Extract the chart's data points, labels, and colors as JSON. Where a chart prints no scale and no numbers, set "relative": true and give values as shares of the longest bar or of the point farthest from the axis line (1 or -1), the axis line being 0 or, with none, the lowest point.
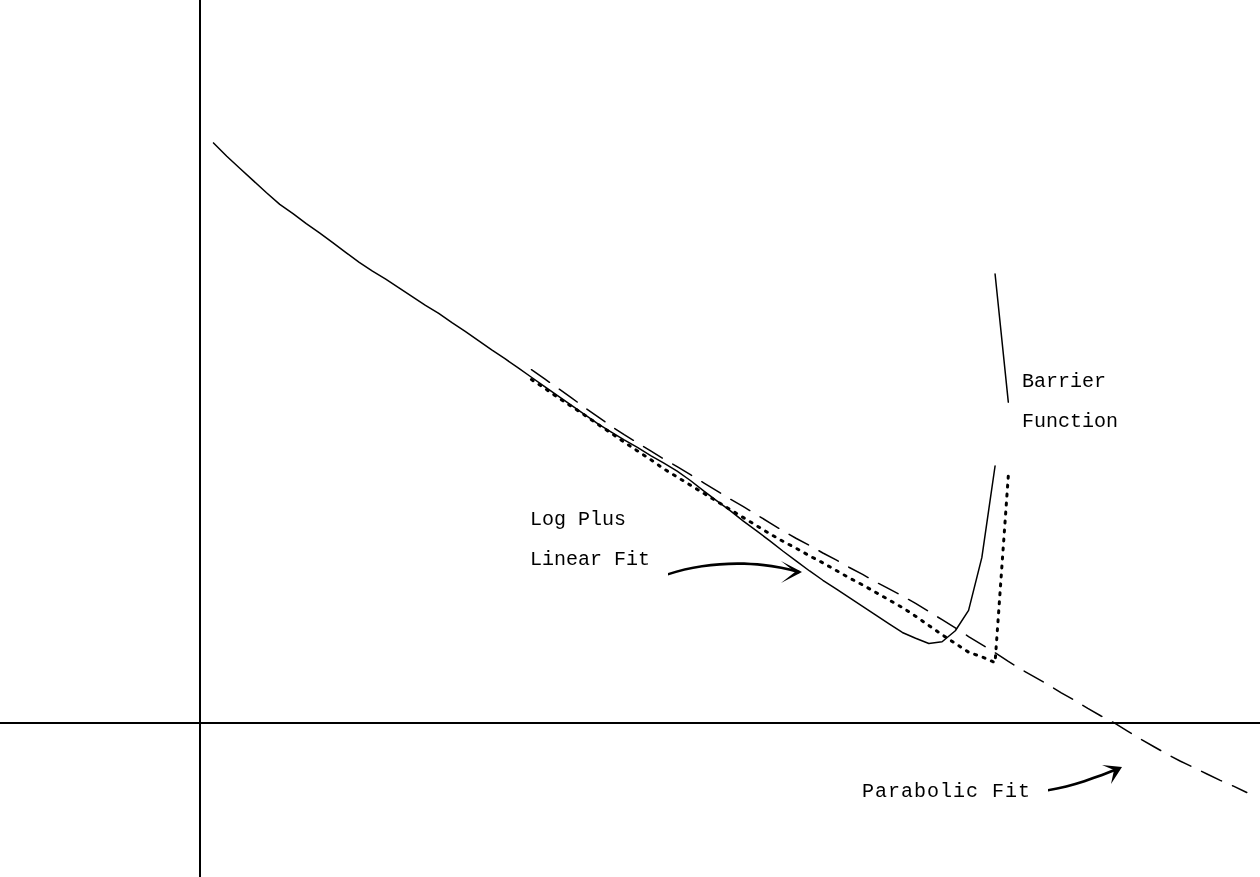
{
  "chart_data": {
    "type": "line",
    "relative": true,
    "marker": "none",
    "categories": [
      null,
      null,
      null,
      null,
      null,
      null,
      null,
      null,
      null,
      null,
      null,
      null,
      null,
      null,
      null,
      null,
      null,
      null,
      null,
      null,
      null,
      null,
      null,
      null,
      null,
      null,
      null,
      null,
      null,
      null,
      null,
      null,
      null,
      null,
      null,
      null,
      null,
      null,
      null,
      null,
      null,
      null,
      null,
      null,
      null,
      null,
      null,
      null,
      null,
      null,
      null,
      null,
      null,
      null,
      null,
      null,
      null,
      null,
      null,
      null,
      null,
      null,
      null,
      null,
      null,
      null,
      null,
      null,
      null,
      null,
      null,
      null,
      null,
      null,
      null,
      null,
      null,
      null,
      null,
      null,
      null
    ],
    "series": [
      {
        "name": "Barrier Function",
        "color": "#000000",
        "line_style": "solid",
        "values": [
          null,
          1.0,
          0.977,
          0.956,
          0.935,
          0.914,
          0.894,
          0.878,
          0.861,
          0.845,
          0.828,
          0.811,
          0.794,
          0.779,
          0.765,
          0.75,
          0.735,
          0.72,
          0.706,
          0.69,
          0.675,
          0.659,
          0.643,
          0.628,
          0.612,
          0.596,
          0.58,
          0.564,
          0.548,
          0.532,
          0.516,
          0.502,
          0.488,
          0.475,
          0.461,
          0.448,
          0.434,
          0.418,
          0.4,
          0.383,
          0.366,
          0.348,
          0.331,
          0.314,
          0.296,
          0.279,
          0.262,
          0.246,
          0.231,
          0.216,
          0.201,
          0.186,
          0.171,
          0.156,
          0.146,
          0.137,
          0.14,
          0.159,
          0.194,
          0.285,
          0.443,
          null,
          null,
          null,
          null,
          null,
          null,
          null,
          null,
          null,
          null,
          null,
          null,
          null,
          null,
          null,
          null,
          null,
          null,
          null,
          null
        ]
      },
      {
        "name": "Log Plus Linear Fit",
        "color": "#000000",
        "line_style": "dotted",
        "values": [
          null,
          null,
          null,
          null,
          null,
          null,
          null,
          null,
          null,
          null,
          null,
          null,
          null,
          null,
          null,
          null,
          null,
          null,
          null,
          null,
          null,
          null,
          null,
          null,
          null,
          0.592,
          0.577,
          0.561,
          0.546,
          0.531,
          0.515,
          0.5,
          0.484,
          0.469,
          0.454,
          0.438,
          0.424,
          0.41,
          0.396,
          0.382,
          0.368,
          0.354,
          0.34,
          0.326,
          0.313,
          0.301,
          0.288,
          0.276,
          0.263,
          0.25,
          0.238,
          0.225,
          0.212,
          0.199,
          0.184,
          0.168,
          0.152,
          0.137,
          0.122,
          0.114,
          0.104,
          0.426,
          null,
          null,
          null,
          null,
          null,
          null,
          null,
          null,
          null,
          null,
          null,
          null,
          null,
          null,
          null,
          null,
          null,
          null,
          null
        ]
      },
      {
        "name": "Parabolic Fit",
        "color": "#000000",
        "line_style": "dashed",
        "values": [
          null,
          null,
          null,
          null,
          null,
          null,
          null,
          null,
          null,
          null,
          null,
          null,
          null,
          null,
          null,
          null,
          null,
          null,
          null,
          null,
          null,
          null,
          null,
          null,
          null,
          0.609,
          0.593,
          0.577,
          0.561,
          0.544,
          0.528,
          0.512,
          0.497,
          0.483,
          0.469,
          0.455,
          0.442,
          0.428,
          0.414,
          0.4,
          0.386,
          0.373,
          0.359,
          0.345,
          0.331,
          0.318,
          0.306,
          0.293,
          0.281,
          0.268,
          0.256,
          0.243,
          0.231,
          0.219,
          0.206,
          0.192,
          0.178,
          0.164,
          0.149,
          0.135,
          0.121,
          0.106,
          0.092,
          0.079,
          0.066,
          0.052,
          0.039,
          0.025,
          0.012,
          0.0,
          -0.014,
          -0.028,
          -0.041,
          -0.054,
          -0.066,
          -0.077,
          -0.088,
          -0.099,
          -0.109,
          -0.12,
          null
        ]
      },
      {
        "color": "#000000",
        "line_style": "solid",
        "values": [
          null,
          null,
          null,
          null,
          null,
          null,
          null,
          null,
          null,
          null,
          null,
          null,
          null,
          null,
          null,
          null,
          null,
          null,
          null,
          null,
          null,
          null,
          null,
          null,
          null,
          null,
          null,
          null,
          null,
          null,
          null,
          null,
          null,
          null,
          null,
          null,
          null,
          null,
          null,
          null,
          null,
          null,
          null,
          null,
          null,
          null,
          null,
          null,
          null,
          null,
          null,
          null,
          null,
          null,
          null,
          null,
          null,
          null,
          null,
          null,
          0.774,
          0.553,
          null,
          null,
          null,
          null,
          null,
          null,
          null,
          null,
          null,
          null,
          null,
          null,
          null,
          null,
          null,
          null,
          null,
          null,
          null
        ]
      }
    ]
  }
}
